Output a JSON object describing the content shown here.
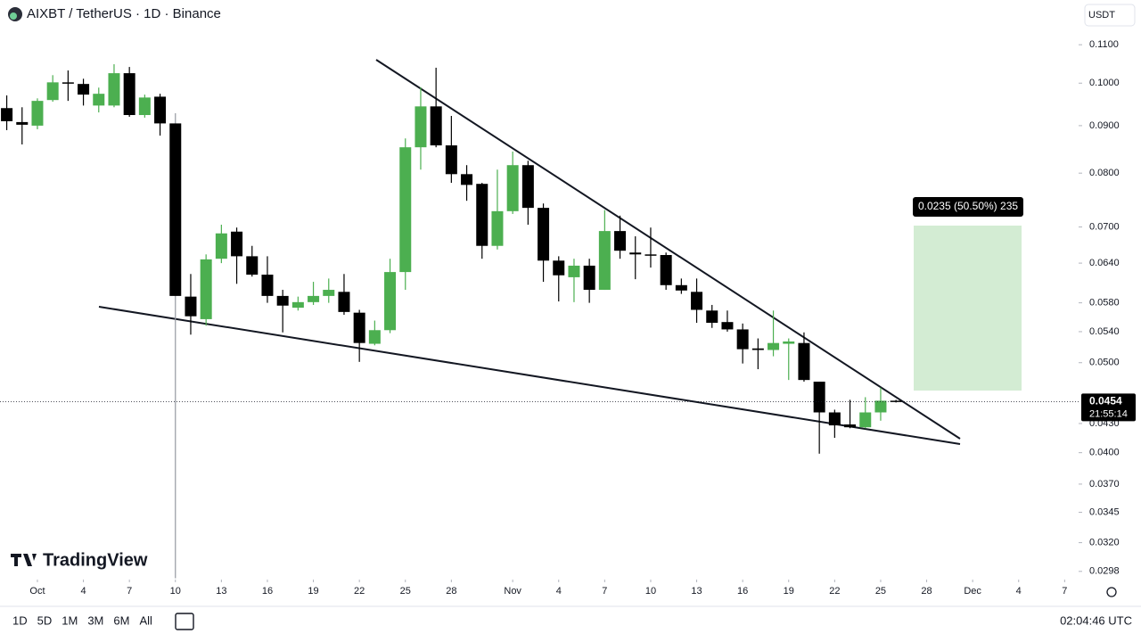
{
  "header": {
    "symbol": "AIXBT / TetherUS · 1D · Binance",
    "currency": "USDT"
  },
  "watermark": "TradingView",
  "toolbar": {
    "timeframes": [
      "1D",
      "5D",
      "1M",
      "3M",
      "6M",
      "All"
    ],
    "clock": "02:04:46 UTC"
  },
  "chart_data": {
    "type": "candlestick",
    "log_scale": true,
    "grid": false,
    "up_color": "#4caf50",
    "down_color": "#000000",
    "xlim": [
      -2.44,
      67.91
    ],
    "xticks": [
      {
        "value": 0,
        "label": "Oct"
      },
      {
        "value": 3,
        "label": "4"
      },
      {
        "value": 6,
        "label": "7"
      },
      {
        "value": 9,
        "label": "10"
      },
      {
        "value": 12,
        "label": "13"
      },
      {
        "value": 15,
        "label": "16"
      },
      {
        "value": 18,
        "label": "19"
      },
      {
        "value": 21,
        "label": "22"
      },
      {
        "value": 24,
        "label": "25"
      },
      {
        "value": 27,
        "label": "28"
      },
      {
        "value": 31,
        "label": "Nov"
      },
      {
        "value": 34,
        "label": "4"
      },
      {
        "value": 37,
        "label": "7"
      },
      {
        "value": 40,
        "label": "10"
      },
      {
        "value": 43,
        "label": "13"
      },
      {
        "value": 46,
        "label": "16"
      },
      {
        "value": 49,
        "label": "19"
      },
      {
        "value": 52,
        "label": "22"
      },
      {
        "value": 55,
        "label": "25"
      },
      {
        "value": 58,
        "label": "28"
      },
      {
        "value": 61,
        "label": "Dec"
      },
      {
        "value": 64,
        "label": "4"
      },
      {
        "value": 67,
        "label": "7"
      }
    ],
    "ylim": [
      0.0292,
      0.1229
    ],
    "yticks": [
      {
        "value": 0.11,
        "label": "0.1100"
      },
      {
        "value": 0.1,
        "label": "0.1000"
      },
      {
        "value": 0.09,
        "label": "0.0900"
      },
      {
        "value": 0.08,
        "label": "0.0800"
      },
      {
        "value": 0.07,
        "label": "0.0700"
      },
      {
        "value": 0.064,
        "label": "0.0640"
      },
      {
        "value": 0.058,
        "label": "0.0580"
      },
      {
        "value": 0.054,
        "label": "0.0540"
      },
      {
        "value": 0.05,
        "label": "0.0500"
      },
      {
        "value": 0.043,
        "label": "0.0430"
      },
      {
        "value": 0.04,
        "label": "0.0400"
      },
      {
        "value": 0.037,
        "label": "0.0370"
      },
      0.0345,
      {
        "value": 0.032,
        "label": "0.0320"
      },
      0.0298
    ],
    "x": [
      -2,
      -1,
      0,
      1,
      2,
      3,
      4,
      5,
      6,
      7,
      8,
      9,
      10,
      11,
      12,
      13,
      14,
      15,
      16,
      17,
      18,
      19,
      20,
      21,
      22,
      23,
      24,
      25,
      26,
      27,
      28,
      29,
      30,
      31,
      32,
      33,
      34,
      35,
      36,
      37,
      38,
      39,
      40,
      41,
      42,
      43,
      44,
      45,
      46,
      47,
      48,
      49,
      50,
      51,
      52,
      53,
      54,
      55,
      56
    ],
    "open": [
      0.094,
      0.0908,
      0.09,
      0.0959,
      0.1002,
      0.0998,
      0.0946,
      0.0946,
      0.1025,
      0.0924,
      0.0967,
      0.0905,
      0.0589,
      0.0557,
      0.0647,
      0.0692,
      0.0651,
      0.0622,
      0.059,
      0.0573,
      0.0581,
      0.059,
      0.0596,
      0.0566,
      0.0524,
      0.0542,
      0.0626,
      0.0853,
      0.0944,
      0.0857,
      0.0798,
      0.0779,
      0.0668,
      0.0728,
      0.0816,
      0.0734,
      0.0644,
      0.0618,
      0.0636,
      0.0599,
      0.0693,
      0.0657,
      0.0654,
      0.0653,
      0.0606,
      0.0596,
      0.0569,
      0.0553,
      0.0543,
      0.0518,
      0.0516,
      0.0524,
      0.0525,
      0.0477,
      0.0442,
      0.0429,
      0.0426,
      0.0442,
      0.0455
    ],
    "high": [
      0.097,
      0.0942,
      0.0963,
      0.102,
      0.1032,
      0.1011,
      0.0989,
      0.1048,
      0.1041,
      0.0972,
      0.0974,
      0.0928,
      0.0623,
      0.0654,
      0.0704,
      0.0699,
      0.0668,
      0.0651,
      0.0599,
      0.0589,
      0.0611,
      0.0616,
      0.0623,
      0.057,
      0.0555,
      0.0647,
      0.0872,
      0.099,
      0.1039,
      0.0922,
      0.0816,
      0.0781,
      0.0807,
      0.0844,
      0.0825,
      0.0742,
      0.0651,
      0.0647,
      0.0647,
      0.073,
      0.072,
      0.0684,
      0.0699,
      0.0657,
      0.0616,
      0.0616,
      0.0577,
      0.0569,
      0.0551,
      0.0531,
      0.0569,
      0.0531,
      0.0539,
      0.0477,
      0.0445,
      0.0456,
      0.0459,
      0.047,
      0.0456
    ],
    "low": [
      0.089,
      0.0859,
      0.0892,
      0.0955,
      0.0957,
      0.0946,
      0.093,
      0.0942,
      0.092,
      0.0918,
      0.0878,
      0.0293,
      0.0536,
      0.0548,
      0.064,
      0.0608,
      0.0619,
      0.058,
      0.0539,
      0.0569,
      0.0577,
      0.058,
      0.0563,
      0.0501,
      0.0522,
      0.0538,
      0.0599,
      0.0807,
      0.0853,
      0.0781,
      0.0747,
      0.0647,
      0.0662,
      0.0723,
      0.0704,
      0.0611,
      0.0582,
      0.0581,
      0.058,
      0.0599,
      0.0647,
      0.0615,
      0.0633,
      0.0599,
      0.0593,
      0.0552,
      0.0545,
      0.054,
      0.0499,
      0.0492,
      0.0508,
      0.0479,
      0.0477,
      0.0399,
      0.0415,
      0.0425,
      0.0425,
      0.0433,
      0.0453
    ],
    "close": [
      0.091,
      0.0902,
      0.0957,
      0.1002,
      0.1,
      0.0972,
      0.0974,
      0.1025,
      0.0924,
      0.0965,
      0.0905,
      0.059,
      0.0561,
      0.0646,
      0.0689,
      0.0651,
      0.0622,
      0.059,
      0.0576,
      0.0581,
      0.059,
      0.0599,
      0.0567,
      0.0525,
      0.0542,
      0.0626,
      0.0853,
      0.0944,
      0.0857,
      0.0798,
      0.0777,
      0.0668,
      0.0728,
      0.0816,
      0.0734,
      0.0644,
      0.0621,
      0.0636,
      0.0599,
      0.0693,
      0.066,
      0.0654,
      0.0653,
      0.0606,
      0.0598,
      0.057,
      0.0552,
      0.0543,
      0.0517,
      0.0516,
      0.0525,
      0.0527,
      0.0479,
      0.0442,
      0.0428,
      0.0426,
      0.0442,
      0.0455,
      0.0454
    ],
    "last_price": 0.0454,
    "countdown": "21:55:14",
    "measure_label": "0.0235 (50.50%) 235"
  }
}
